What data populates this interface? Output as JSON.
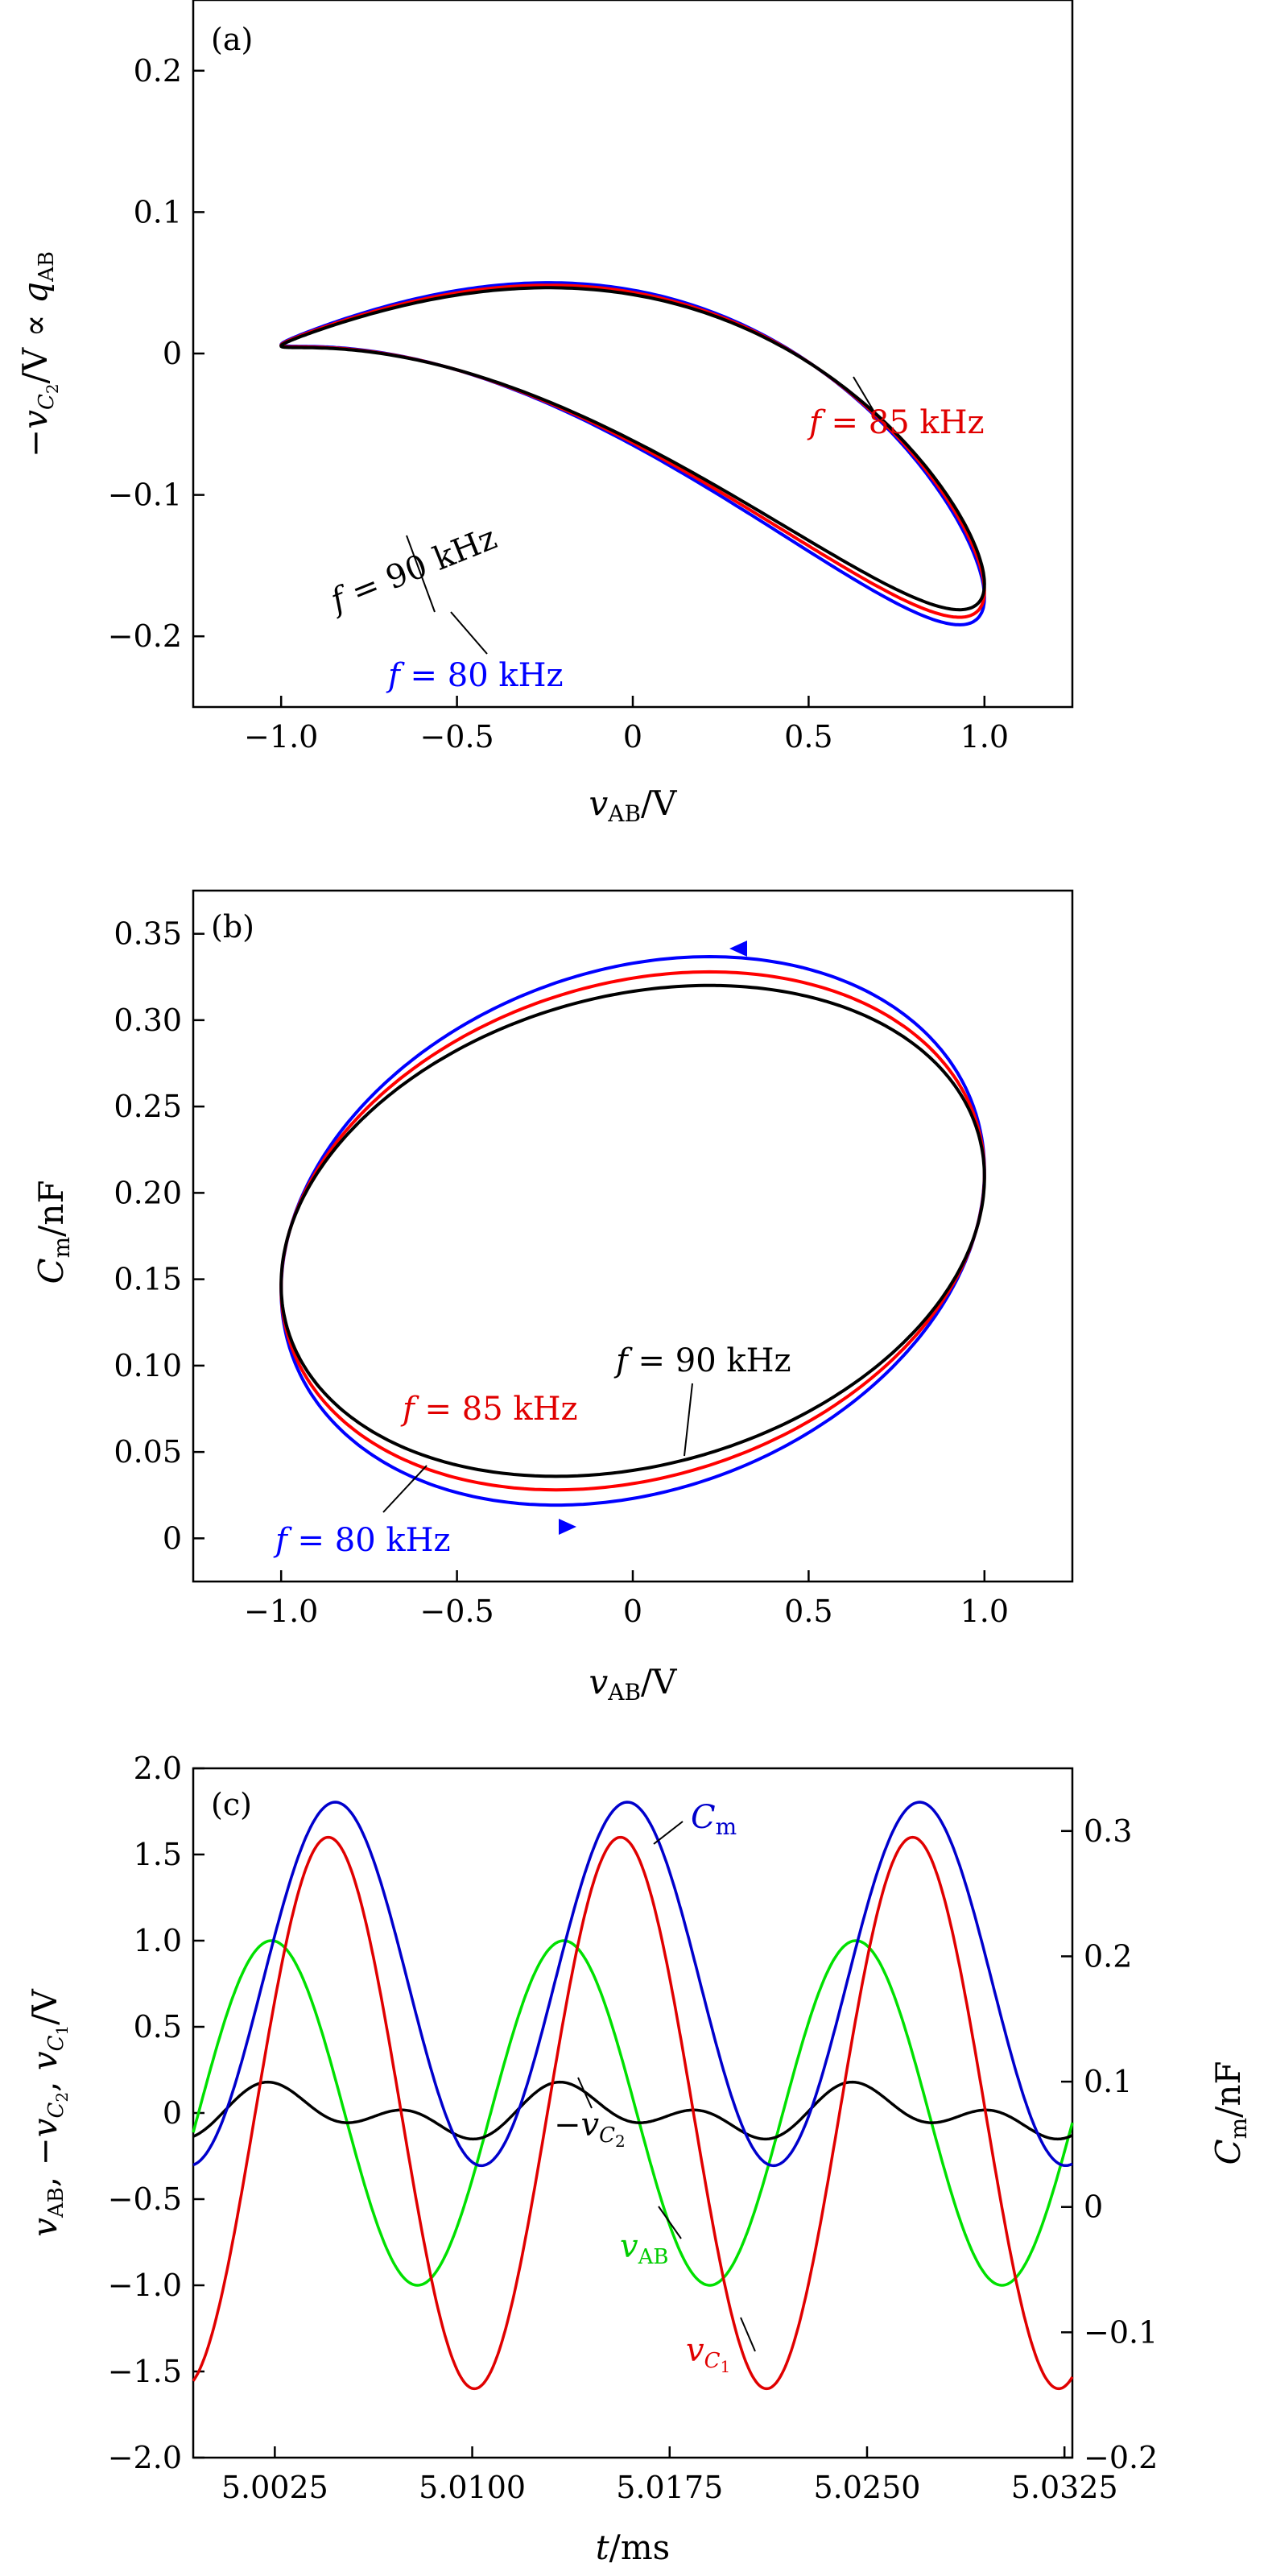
{
  "chart_data": [
    {
      "panel_label": "(a)",
      "type": "line",
      "xlabel": "v_AB/V",
      "ylabel": "−v_C2/V ∝ q_AB",
      "xlim": [
        -1.25,
        1.25
      ],
      "ylim": [
        -0.25,
        0.25
      ],
      "xticks": [
        -1.0,
        -0.5,
        0,
        0.5,
        1.0
      ],
      "xtick_labels": [
        "−1.0",
        "−0.5",
        "0",
        "0.5",
        "1.0"
      ],
      "yticks": [
        -0.2,
        -0.1,
        0,
        0.1,
        0.2
      ],
      "ytick_labels": [
        "−0.2",
        "−0.1",
        "0",
        "0.1",
        "0.2"
      ],
      "grid": false,
      "series": [
        {
          "name": "f = 80 kHz",
          "color": "#0000ff",
          "amplitude": 0.205
        },
        {
          "name": "f = 85 kHz",
          "color": "#ff0000",
          "amplitude": 0.199
        },
        {
          "name": "f = 90 kHz",
          "color": "#000000",
          "amplitude": 0.193
        }
      ],
      "annotations": [
        "f = 80 kHz",
        "f = 85 kHz",
        "f = 90 kHz"
      ]
    },
    {
      "panel_label": "(b)",
      "type": "line",
      "xlabel": "v_AB/V",
      "ylabel": "C_m/nF",
      "xlim": [
        -1.25,
        1.25
      ],
      "ylim": [
        -0.025,
        0.375
      ],
      "xticks": [
        -1.0,
        -0.5,
        0,
        0.5,
        1.0
      ],
      "xtick_labels": [
        "−1.0",
        "−0.5",
        "0",
        "0.5",
        "1.0"
      ],
      "yticks": [
        0,
        0.05,
        0.1,
        0.15,
        0.2,
        0.25,
        0.3,
        0.35
      ],
      "ytick_labels": [
        "0",
        "0.05",
        "0.10",
        "0.15",
        "0.20",
        "0.25",
        "0.30",
        "0.35"
      ],
      "grid": false,
      "series": [
        {
          "name": "f = 80 kHz",
          "color": "#0000ff",
          "c_mid": 0.178,
          "c_amp": 0.162
        },
        {
          "name": "f = 85 kHz",
          "color": "#ff0000",
          "c_mid": 0.178,
          "c_amp": 0.153
        },
        {
          "name": "f = 90 kHz",
          "color": "#000000",
          "c_mid": 0.178,
          "c_amp": 0.145
        }
      ],
      "annotations": [
        "f = 80 kHz",
        "f = 85 kHz",
        "f = 90 kHz"
      ]
    },
    {
      "panel_label": "(c)",
      "type": "line",
      "xlabel": "t/ms",
      "ylabel": "v_AB, −v_C2, v_C1/V",
      "ylabel_right": "C_m/nF",
      "xlim": [
        4.9994,
        5.0328
      ],
      "ylim": [
        -2.0,
        2.0
      ],
      "ylim_right": [
        -0.2,
        0.35
      ],
      "xticks": [
        5.0025,
        5.01,
        5.0175,
        5.025,
        5.0325
      ],
      "xtick_labels": [
        "5.0025",
        "5.0100",
        "5.0175",
        "5.0250",
        "5.0325"
      ],
      "yticks": [
        -2.0,
        -1.5,
        -1.0,
        -0.5,
        0,
        0.5,
        1.0,
        1.5,
        2.0
      ],
      "ytick_labels": [
        "−2.0",
        "−1.5",
        "−1.0",
        "−0.5",
        "0",
        "0.5",
        "1.0",
        "1.5",
        "2.0"
      ],
      "yticks_right": [
        -0.2,
        -0.1,
        0,
        0.1,
        0.2,
        0.3
      ],
      "ytick_labels_right": [
        "−0.2",
        "−0.1",
        "0",
        "0.1",
        "0.2",
        "0.3"
      ],
      "period_ms": 0.0111,
      "series": [
        {
          "name": "v_AB",
          "color": "#00e000",
          "amplitude": 1.0,
          "axis": "left"
        },
        {
          "name": "−v_C2",
          "color": "#000000",
          "amplitude": 0.19,
          "axis": "left"
        },
        {
          "name": "v_C1",
          "color": "#e00000",
          "amplitude": 1.6,
          "axis": "left"
        },
        {
          "name": "C_m",
          "color": "#0000cc",
          "mid": 0.178,
          "amp": 0.145,
          "axis": "right"
        }
      ],
      "annotations": [
        "C_m",
        "−v_C2",
        "v_AB",
        "v_C1"
      ]
    }
  ]
}
